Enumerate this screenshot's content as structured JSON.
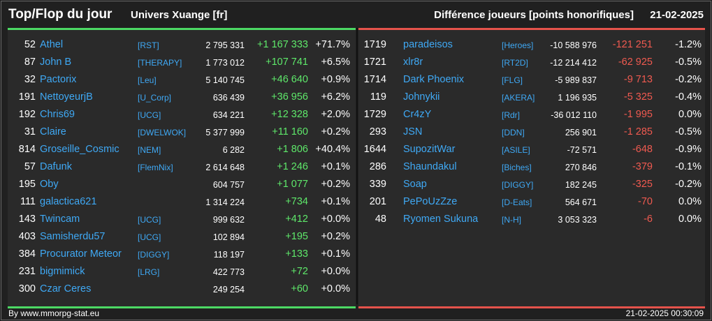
{
  "header": {
    "title": "Top/Flop du jour",
    "subtitle": "Univers Xuange [fr]",
    "metric": "Différence joueurs [points honorifiques]",
    "date": "21-02-2025"
  },
  "colors": {
    "gain": "#5ee86a",
    "loss": "#f05a50",
    "name": "#3fa9f5"
  },
  "top": [
    {
      "rank": "52",
      "name": "Athel",
      "ally": "[RST]",
      "points": "2 795 331",
      "diff": "+1 167 333",
      "pct": "+71.7%"
    },
    {
      "rank": "87",
      "name": "John B",
      "ally": "[THERAPY]",
      "points": "1 773 012",
      "diff": "+107 741",
      "pct": "+6.5%"
    },
    {
      "rank": "32",
      "name": "Pactorix",
      "ally": "[Leu]",
      "points": "5 140 745",
      "diff": "+46 640",
      "pct": "+0.9%"
    },
    {
      "rank": "191",
      "name": "NettoyeurjB",
      "ally": "[U_Corp]",
      "points": "636 439",
      "diff": "+36 956",
      "pct": "+6.2%"
    },
    {
      "rank": "192",
      "name": "Chris69",
      "ally": "[UCG]",
      "points": "634 221",
      "diff": "+12 328",
      "pct": "+2.0%"
    },
    {
      "rank": "31",
      "name": "Claire",
      "ally": "[DWELWOK]",
      "points": "5 377 999",
      "diff": "+11 160",
      "pct": "+0.2%"
    },
    {
      "rank": "814",
      "name": "Groseille_Cosmic",
      "ally": "[NEM]",
      "points": "6 282",
      "diff": "+1 806",
      "pct": "+40.4%"
    },
    {
      "rank": "57",
      "name": "Dafunk",
      "ally": "[FlemNix]",
      "points": "2 614 648",
      "diff": "+1 246",
      "pct": "+0.1%"
    },
    {
      "rank": "195",
      "name": "Oby",
      "ally": "",
      "points": "604 757",
      "diff": "+1 077",
      "pct": "+0.2%"
    },
    {
      "rank": "111",
      "name": "galactica621",
      "ally": "",
      "points": "1 314 224",
      "diff": "+734",
      "pct": "+0.1%"
    },
    {
      "rank": "143",
      "name": "Twincam",
      "ally": "[UCG]",
      "points": "999 632",
      "diff": "+412",
      "pct": "+0.0%"
    },
    {
      "rank": "403",
      "name": "Samisherdu57",
      "ally": "[UCG]",
      "points": "102 894",
      "diff": "+195",
      "pct": "+0.2%"
    },
    {
      "rank": "384",
      "name": "Procurator Meteor",
      "ally": "[DIGGY]",
      "points": "118 197",
      "diff": "+133",
      "pct": "+0.1%"
    },
    {
      "rank": "231",
      "name": "bigmimick",
      "ally": "[LRG]",
      "points": "422 773",
      "diff": "+72",
      "pct": "+0.0%"
    },
    {
      "rank": "300",
      "name": "Czar Ceres",
      "ally": "",
      "points": "249 254",
      "diff": "+60",
      "pct": "+0.0%"
    }
  ],
  "flop": [
    {
      "rank": "1719",
      "name": "paradeisos",
      "ally": "[Heroes]",
      "points": "-10 588 976",
      "diff": "-121 251",
      "pct": "-1.2%"
    },
    {
      "rank": "1721",
      "name": "xlr8r",
      "ally": "[RT2D]",
      "points": "-12 214 412",
      "diff": "-62 925",
      "pct": "-0.5%"
    },
    {
      "rank": "1714",
      "name": "Dark Phoenix",
      "ally": "[FLG]",
      "points": "-5 989 837",
      "diff": "-9 713",
      "pct": "-0.2%"
    },
    {
      "rank": "119",
      "name": "Johnykii",
      "ally": "[AKERA]",
      "points": "1 196 935",
      "diff": "-5 325",
      "pct": "-0.4%"
    },
    {
      "rank": "1729",
      "name": "Cr4zY",
      "ally": "[Rdr]",
      "points": "-36 012 110",
      "diff": "-1 995",
      "pct": "0.0%"
    },
    {
      "rank": "293",
      "name": "JSN",
      "ally": "[DDN]",
      "points": "256 901",
      "diff": "-1 285",
      "pct": "-0.5%"
    },
    {
      "rank": "1644",
      "name": "SupozitWar",
      "ally": "[ASILE]",
      "points": "-72 571",
      "diff": "-648",
      "pct": "-0.9%"
    },
    {
      "rank": "286",
      "name": "Shaundakul",
      "ally": "[Biches]",
      "points": "270 846",
      "diff": "-379",
      "pct": "-0.1%"
    },
    {
      "rank": "339",
      "name": "Soap",
      "ally": "[DIGGY]",
      "points": "182 245",
      "diff": "-325",
      "pct": "-0.2%"
    },
    {
      "rank": "201",
      "name": "PePoUzZze",
      "ally": "[D-Eats]",
      "points": "564 671",
      "diff": "-70",
      "pct": "0.0%"
    },
    {
      "rank": "48",
      "name": "Ryomen Sukuna",
      "ally": "[N-H]",
      "points": "3 053 323",
      "diff": "-6",
      "pct": "0.0%"
    }
  ],
  "footer": {
    "credit": "By www.mmorpg-stat.eu",
    "timestamp": "21-02-2025 00:30:09"
  }
}
